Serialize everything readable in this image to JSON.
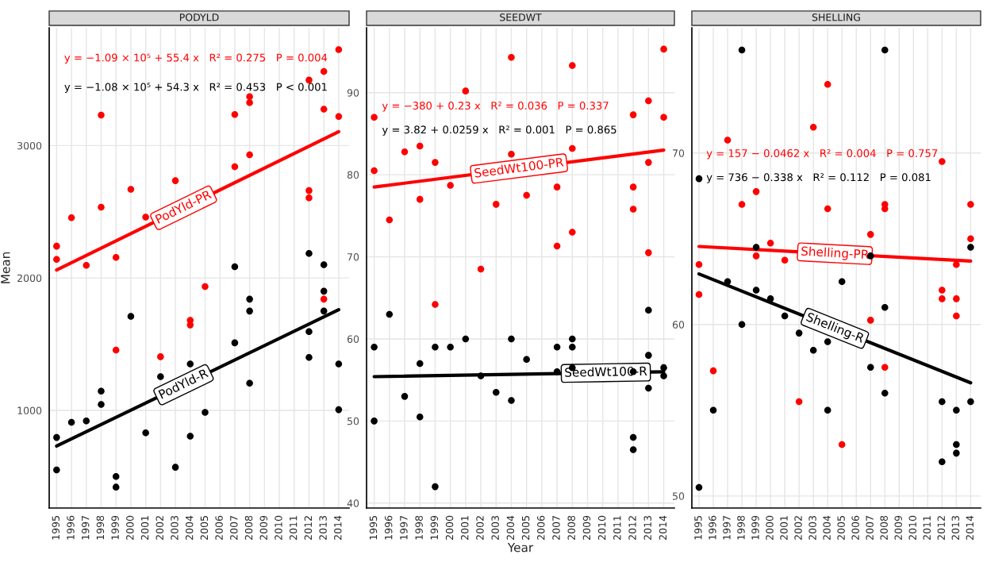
{
  "chart_data": [
    {
      "type": "scatter",
      "title": "PODYLD",
      "ylabel": "Mean",
      "xlim": [
        1994.5,
        2014.7
      ],
      "xticks": [
        1995,
        1996,
        1997,
        1998,
        1999,
        2000,
        2001,
        2002,
        2003,
        2004,
        2005,
        2006,
        2007,
        2008,
        2009,
        2010,
        2011,
        2012,
        2013,
        2014
      ],
      "ylim": [
        262,
        3890
      ],
      "yticks": [
        1000,
        2000,
        3000
      ],
      "grid": true,
      "annotations": [
        "y = −1.09 × 10⁵ + 55.4 x   R² = 0.275   P = 0.004",
        "y = −1.08 × 10⁵ + 54.3 x   R² = 0.453   P < 0.001"
      ],
      "series": [
        {
          "marker": "circle",
          "color": "#ff0000",
          "x": [
            1995,
            1995,
            1996,
            1997,
            1998,
            1998,
            1999,
            1999,
            2000,
            2001,
            2002,
            2003,
            2004,
            2004,
            2005,
            2007,
            2007,
            2008,
            2008,
            2008,
            2012,
            2012,
            2012,
            2013,
            2013,
            2013,
            2014,
            2014
          ],
          "values": [
            2240,
            2140,
            2455,
            2095,
            3230,
            2535,
            2155,
            1455,
            2670,
            2460,
            1405,
            2735,
            1680,
            1645,
            1935,
            3235,
            2840,
            3370,
            3325,
            2930,
            3495,
            2660,
            2605,
            3560,
            3275,
            1840,
            3725,
            3220
          ]
        },
        {
          "marker": "circle",
          "color": "#000000",
          "x": [
            1995,
            1995,
            1996,
            1997,
            1998,
            1998,
            1999,
            1999,
            2000,
            2001,
            2002,
            2003,
            2004,
            2004,
            2005,
            2007,
            2007,
            2008,
            2008,
            2008,
            2012,
            2012,
            2012,
            2013,
            2013,
            2013,
            2014,
            2014
          ],
          "values": [
            795,
            550,
            910,
            920,
            1145,
            1045,
            500,
            420,
            1710,
            830,
            1255,
            570,
            1350,
            805,
            985,
            2085,
            1510,
            1840,
            1750,
            1205,
            2185,
            1595,
            1400,
            2100,
            1900,
            1750,
            1350,
            1005
          ]
        },
        {
          "type": "line",
          "name": "PodYld-PR",
          "color": "#ff0000",
          "x": [
            1995,
            2014
          ],
          "values": [
            2060,
            3105
          ]
        },
        {
          "type": "line",
          "name": "PodYld-R",
          "color": "#000000",
          "x": [
            1995,
            2014
          ],
          "values": [
            730,
            1760
          ]
        }
      ]
    },
    {
      "type": "scatter",
      "title": "SEEDWT",
      "xlabel": "Year",
      "xlim": [
        1994.5,
        2014.7
      ],
      "xticks": [
        1995,
        1996,
        1997,
        1998,
        1999,
        2000,
        2001,
        2002,
        2003,
        2004,
        2005,
        2006,
        2007,
        2008,
        2009,
        2010,
        2011,
        2012,
        2013,
        2014
      ],
      "ylim": [
        39.4,
        97.9
      ],
      "yticks": [
        40,
        50,
        60,
        70,
        80,
        90
      ],
      "grid": true,
      "annotations": [
        "y = −380 + 0.23 x   R² = 0.036   P = 0.337",
        "y = 3.82 + 0.0259 x   R² = 0.001   P = 0.865"
      ],
      "series": [
        {
          "marker": "circle",
          "color": "#ff0000",
          "x": [
            1995,
            1995,
            1996,
            1997,
            1998,
            1998,
            1999,
            1999,
            2000,
            2001,
            2002,
            2003,
            2004,
            2004,
            2005,
            2007,
            2007,
            2008,
            2008,
            2008,
            2012,
            2012,
            2012,
            2013,
            2013,
            2013,
            2014,
            2014
          ],
          "values": [
            87.0,
            80.5,
            74.5,
            82.8,
            83.5,
            77.0,
            81.5,
            64.2,
            78.7,
            90.2,
            68.5,
            76.4,
            94.3,
            82.5,
            77.5,
            78.5,
            71.3,
            93.3,
            83.2,
            73.0,
            87.3,
            78.5,
            75.8,
            89.0,
            81.5,
            70.5,
            95.3,
            87.0
          ]
        },
        {
          "marker": "circle",
          "color": "#000000",
          "x": [
            1995,
            1995,
            1996,
            1997,
            1998,
            1998,
            1999,
            1999,
            2000,
            2001,
            2002,
            2003,
            2004,
            2004,
            2005,
            2007,
            2007,
            2008,
            2008,
            2008,
            2012,
            2012,
            2012,
            2013,
            2013,
            2013,
            2014,
            2014
          ],
          "values": [
            59.0,
            50.0,
            63.0,
            53.0,
            57.0,
            50.5,
            59.0,
            42.0,
            59.0,
            60.0,
            55.5,
            53.5,
            60.0,
            52.5,
            57.5,
            59.0,
            56.0,
            60.0,
            59.0,
            56.5,
            56.0,
            48.0,
            46.5,
            63.5,
            58.0,
            54.0,
            56.5,
            55.5
          ]
        },
        {
          "type": "line",
          "name": "SeedWt100-PR",
          "color": "#ff0000",
          "x": [
            1995,
            2014
          ],
          "values": [
            78.5,
            83.0
          ]
        },
        {
          "type": "line",
          "name": "SeedWt100-R",
          "color": "#000000",
          "x": [
            1995,
            2014
          ],
          "values": [
            55.4,
            56.0
          ]
        }
      ]
    },
    {
      "type": "scatter",
      "title": "SHELLING",
      "xlim": [
        1994.5,
        2014.7
      ],
      "xticks": [
        1995,
        1996,
        1997,
        1998,
        1999,
        2000,
        2001,
        2002,
        2003,
        2004,
        2005,
        2006,
        2007,
        2008,
        2009,
        2010,
        2011,
        2012,
        2013,
        2014
      ],
      "ylim": [
        49.3,
        77.3
      ],
      "yticks": [
        50,
        60,
        70
      ],
      "grid": true,
      "annotations": [
        "y = 157 − 0.0462 x   R² = 0.004   P = 0.757",
        "y = 736 − 0.338 x   R² = 0.112   P = 0.081"
      ],
      "series": [
        {
          "marker": "circle",
          "color": "#ff0000",
          "x": [
            1995,
            1995,
            1996,
            1997,
            1998,
            1999,
            1999,
            2000,
            2001,
            2002,
            2003,
            2004,
            2004,
            2005,
            2007,
            2007,
            2008,
            2008,
            2008,
            2012,
            2012,
            2012,
            2013,
            2013,
            2013,
            2014,
            2014
          ],
          "values": [
            63.5,
            61.75,
            57.3,
            70.75,
            67.0,
            67.75,
            64.0,
            64.75,
            63.75,
            55.5,
            71.5,
            74.0,
            66.75,
            53.0,
            65.25,
            60.25,
            67.0,
            66.75,
            57.5,
            69.5,
            62.0,
            61.5,
            63.5,
            61.5,
            60.5,
            67.0,
            65.0
          ]
        },
        {
          "marker": "circle",
          "color": "#000000",
          "x": [
            1995,
            1995,
            1996,
            1997,
            1998,
            1998,
            1999,
            1999,
            2000,
            2001,
            2002,
            2003,
            2004,
            2004,
            2005,
            2007,
            2007,
            2008,
            2008,
            2008,
            2012,
            2012,
            2013,
            2013,
            2013,
            2014,
            2014
          ],
          "values": [
            68.5,
            50.5,
            55.0,
            62.5,
            76.0,
            60.0,
            64.5,
            62.0,
            61.5,
            60.5,
            59.5,
            58.5,
            59.0,
            55.0,
            62.5,
            64.0,
            57.5,
            76.0,
            61.0,
            56.0,
            55.5,
            52.0,
            55.0,
            53.0,
            52.5,
            64.5,
            55.5
          ]
        },
        {
          "type": "line",
          "name": "Shelling-PR",
          "color": "#ff0000",
          "x": [
            1995,
            2014
          ],
          "values": [
            64.55,
            63.7
          ]
        },
        {
          "type": "line",
          "name": "Shelling-R",
          "color": "#000000",
          "x": [
            1995,
            2014
          ],
          "values": [
            62.95,
            56.6
          ]
        }
      ]
    }
  ]
}
